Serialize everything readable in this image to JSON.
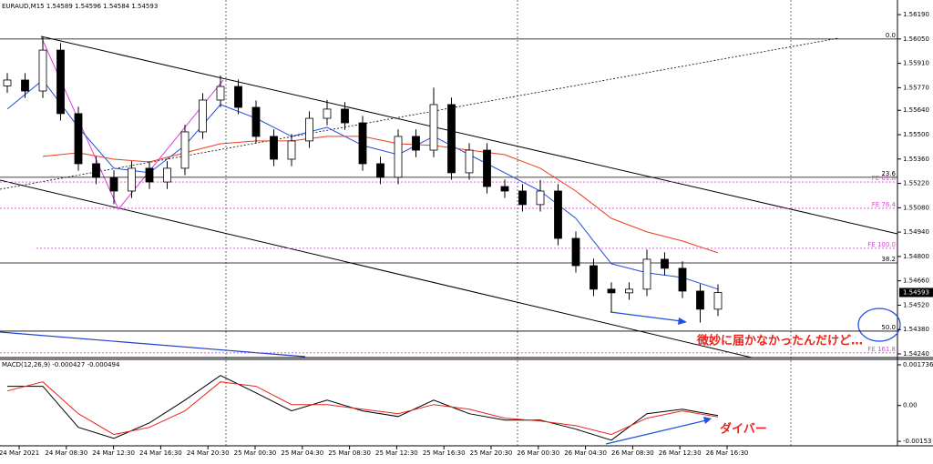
{
  "chart_data": {
    "type": "candlestick",
    "header": "EURAUD,M15  1.54589 1.54596 1.54584 1.54593",
    "open": [
      1.5578,
      1.55814,
      1.55751,
      1.55986,
      1.55621,
      1.55333,
      1.55255,
      1.55176,
      1.55307,
      1.55228,
      1.55307,
      1.55516,
      1.55699,
      1.55777,
      1.55657,
      1.5549,
      1.55359,
      1.55464,
      1.55594,
      1.55647,
      1.55568,
      1.55333,
      1.55255,
      1.5549,
      1.55411,
      1.55673,
      1.55281,
      1.55411,
      1.55202,
      1.55176,
      1.55098,
      1.55176,
      1.54904,
      1.54747,
      1.54612,
      1.54591,
      1.54612,
      1.54784,
      1.54732,
      1.54601,
      1.54497
    ],
    "high": [
      1.55854,
      1.55854,
      1.5606,
      1.56026,
      1.55661,
      1.55373,
      1.55295,
      1.55347,
      1.55347,
      1.55347,
      1.55556,
      1.55739,
      1.5584,
      1.55817,
      1.55697,
      1.5553,
      1.55504,
      1.55634,
      1.557,
      1.55687,
      1.55608,
      1.55373,
      1.5553,
      1.5553,
      1.5577,
      1.55713,
      1.55451,
      1.55451,
      1.55242,
      1.55216,
      1.5524,
      1.55216,
      1.54944,
      1.54787,
      1.54652,
      1.54652,
      1.5484,
      1.54824,
      1.54772,
      1.54641,
      1.5464
    ],
    "low": [
      1.5574,
      1.55711,
      1.55711,
      1.55581,
      1.55293,
      1.55215,
      1.551,
      1.55136,
      1.55188,
      1.55188,
      1.55267,
      1.55476,
      1.55659,
      1.55617,
      1.5545,
      1.55319,
      1.55319,
      1.55424,
      1.55554,
      1.55528,
      1.55293,
      1.55215,
      1.55215,
      1.55371,
      1.55371,
      1.55241,
      1.55241,
      1.55162,
      1.55136,
      1.55058,
      1.55058,
      1.54864,
      1.54707,
      1.54572,
      1.5448,
      1.54551,
      1.54572,
      1.54692,
      1.54561,
      1.5442,
      1.54457
    ],
    "close": [
      1.55814,
      1.55751,
      1.55986,
      1.55621,
      1.55333,
      1.55255,
      1.55176,
      1.55307,
      1.55228,
      1.55307,
      1.55516,
      1.55699,
      1.55777,
      1.55657,
      1.5549,
      1.55359,
      1.55464,
      1.55594,
      1.55647,
      1.55568,
      1.55333,
      1.55255,
      1.5549,
      1.55411,
      1.55673,
      1.55281,
      1.55411,
      1.55202,
      1.55176,
      1.55098,
      1.55176,
      1.54904,
      1.54747,
      1.54612,
      1.54591,
      1.54612,
      1.54784,
      1.54732,
      1.54601,
      1.54497,
      1.54593
    ],
    "overlays": [
      {
        "color": "#1f4fe0",
        "x": [
          0,
          2,
          4,
          6,
          8,
          10,
          12,
          14,
          16,
          18,
          20,
          22,
          24,
          26,
          28,
          30,
          32,
          34,
          36,
          38,
          40
        ],
        "values": [
          1.55647,
          1.55814,
          1.55542,
          1.55307,
          1.55281,
          1.55438,
          1.55673,
          1.55594,
          1.5549,
          1.55542,
          1.55438,
          1.55385,
          1.5549,
          1.55385,
          1.55281,
          1.55176,
          1.55019,
          1.54758,
          1.54706,
          1.54679,
          1.54612
        ]
      },
      {
        "color": "#f03c1e",
        "x": [
          0,
          2,
          4,
          6,
          8,
          10,
          12,
          14,
          16,
          18,
          20,
          22,
          24,
          26,
          28,
          30,
          32,
          34,
          36,
          38,
          40
        ],
        "values": [
          null,
          1.55375,
          1.55396,
          1.55359,
          1.55343,
          1.55396,
          1.55448,
          1.55464,
          1.55464,
          1.5549,
          1.5549,
          1.55448,
          1.55438,
          1.55411,
          1.55385,
          1.55307,
          1.55176,
          1.55019,
          1.54941,
          1.54889,
          1.54821
        ]
      }
    ],
    "ylim": [
      1.54219,
      1.56274
    ],
    "yticks": [
      {
        "value": 1.5619,
        "label": "1.56190"
      },
      {
        "value": 1.5605,
        "label": "1.56050"
      },
      {
        "value": 1.5591,
        "label": "1.55910"
      },
      {
        "value": 1.5577,
        "label": "1.55770"
      },
      {
        "value": 1.5564,
        "label": "1.55640"
      },
      {
        "value": 1.555,
        "label": "1.55500"
      },
      {
        "value": 1.5536,
        "label": "1.55360"
      },
      {
        "value": 1.5522,
        "label": "1.55220"
      },
      {
        "value": 1.5508,
        "label": "1.55080"
      },
      {
        "value": 1.5494,
        "label": "1.54940"
      },
      {
        "value": 1.548,
        "label": "1.54800"
      },
      {
        "value": 1.5466,
        "label": "1.54660"
      },
      {
        "value": 1.5452,
        "label": "1.54520"
      },
      {
        "value": 1.5438,
        "label": "1.54380"
      },
      {
        "value": 1.5424,
        "label": "1.54240"
      }
    ],
    "fibo": [
      {
        "label": "0.0",
        "price": 1.5605
      },
      {
        "label": "23.6",
        "price": 1.55255
      },
      {
        "label": "38.2",
        "price": 1.54763
      },
      {
        "label": "50.0",
        "price": 1.54371
      }
    ],
    "expansion": [
      {
        "label": "FE 61.8",
        "price": 1.55228
      },
      {
        "label": "FE 76.4",
        "price": 1.55077
      },
      {
        "label": "FE 100.0",
        "price": 1.54847
      },
      {
        "label": "FE 161.8",
        "price": 1.54246
      }
    ],
    "time_labels": [
      "24 Mar 2021",
      "24 Mar 08:30",
      "24 Mar 12:30",
      "24 Mar 16:30",
      "24 Mar 20:30",
      "25 Mar 00:30",
      "25 Mar 04:30",
      "25 Mar 08:30",
      "25 Mar 12:30",
      "25 Mar 16:30",
      "25 Mar 20:30",
      "26 Mar 00:30",
      "26 Mar 04:30",
      "26 Mar 08:30",
      "26 Mar 12:30",
      "26 Mar 16:30"
    ],
    "annotations": [
      "微妙に届かなかったんだけど…",
      "ダイバー"
    ],
    "macd": {
      "label": "MACD(12,26,9) -0.000427 -0.000494",
      "x": [
        0,
        2,
        4,
        6,
        8,
        10,
        12,
        14,
        16,
        18,
        20,
        22,
        24,
        26,
        28,
        30,
        32,
        34,
        36,
        38,
        40
      ],
      "main": {
        "color": "#000000",
        "values": [
          0.00082,
          0.00082,
          -0.00093,
          -0.0014,
          -0.00074,
          0.00023,
          0.00128,
          0.00054,
          -0.00023,
          0.00023,
          -0.00023,
          -0.00047,
          0.00023,
          -0.00035,
          -0.00062,
          -0.00062,
          -0.00101,
          -0.00148,
          -0.00035,
          -0.00016,
          -0.00043
        ]
      },
      "signal": {
        "color": "#e8241b",
        "values": [
          0.00062,
          0.00101,
          -0.00035,
          -0.00124,
          -0.00093,
          -0.00023,
          0.00101,
          0.00082,
          4e-05,
          4e-05,
          -0.00016,
          -0.00035,
          4e-05,
          -0.00016,
          -0.00054,
          -0.00066,
          -0.00086,
          -0.00124,
          -0.00054,
          -0.00023,
          -0.00049
        ]
      },
      "ylim": [
        -0.00172,
        0.00193
      ],
      "yticks": [
        0.001736,
        {
          "value": 0,
          "label": "0.00"
        },
        -0.00153
      ]
    }
  }
}
